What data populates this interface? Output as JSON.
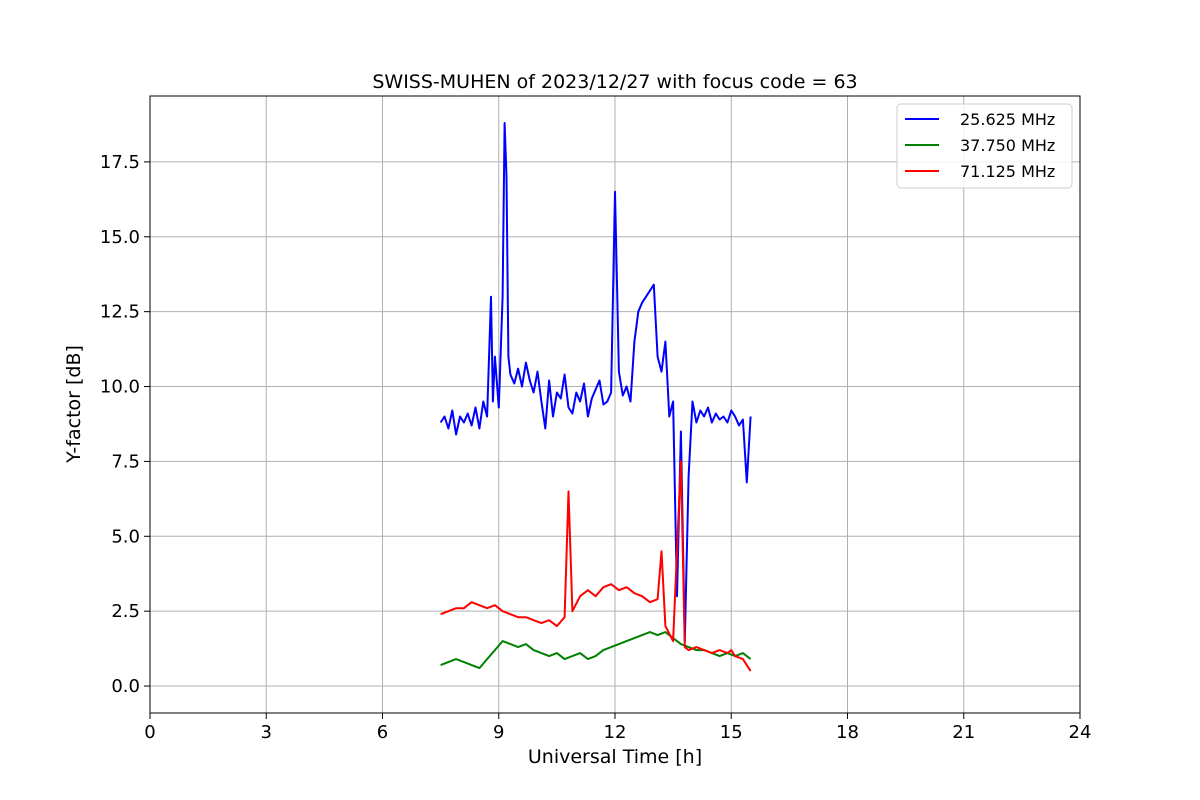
{
  "chart_data": {
    "type": "line",
    "title": "SWISS-MUHEN of 2023/12/27 with focus code = 63",
    "xlabel": "Universal Time [h]",
    "ylabel": "Y-factor [dB]",
    "xlim": [
      0,
      24
    ],
    "ylim": [
      -0.9,
      19.7
    ],
    "xticks": [
      0,
      3,
      6,
      9,
      12,
      15,
      18,
      21,
      24
    ],
    "xtick_labels": [
      "0",
      "3",
      "6",
      "9",
      "12",
      "15",
      "18",
      "21",
      "24"
    ],
    "yticks": [
      0,
      2.5,
      5,
      7.5,
      10,
      12.5,
      15,
      17.5
    ],
    "ytick_labels": [
      "0.0",
      "2.5",
      "5.0",
      "7.5",
      "10.0",
      "12.5",
      "15.0",
      "17.5"
    ],
    "grid": true,
    "legend_position": "top-right",
    "series": [
      {
        "name": "25.625 MHz",
        "color": "#0000ff",
        "x": [
          7.5,
          7.6,
          7.7,
          7.8,
          7.9,
          8.0,
          8.1,
          8.2,
          8.3,
          8.4,
          8.5,
          8.6,
          8.7,
          8.8,
          8.85,
          8.9,
          9.0,
          9.1,
          9.15,
          9.2,
          9.25,
          9.3,
          9.4,
          9.5,
          9.6,
          9.7,
          9.8,
          9.9,
          10.0,
          10.1,
          10.2,
          10.3,
          10.4,
          10.5,
          10.6,
          10.7,
          10.8,
          10.9,
          11.0,
          11.1,
          11.2,
          11.3,
          11.4,
          11.5,
          11.6,
          11.7,
          11.8,
          11.9,
          12.0,
          12.1,
          12.2,
          12.3,
          12.4,
          12.5,
          12.6,
          12.7,
          12.8,
          12.9,
          13.0,
          13.1,
          13.2,
          13.3,
          13.4,
          13.5,
          13.6,
          13.7,
          13.8,
          13.9,
          14.0,
          14.1,
          14.2,
          14.3,
          14.4,
          14.5,
          14.6,
          14.7,
          14.8,
          14.9,
          15.0,
          15.1,
          15.2,
          15.3,
          15.4,
          15.5
        ],
        "y": [
          8.8,
          9.0,
          8.6,
          9.2,
          8.4,
          9.0,
          8.8,
          9.1,
          8.7,
          9.3,
          8.6,
          9.5,
          9.0,
          13.0,
          9.5,
          11.0,
          9.3,
          13.0,
          18.8,
          17.0,
          11.0,
          10.4,
          10.1,
          10.6,
          10.0,
          10.8,
          10.2,
          9.8,
          10.5,
          9.5,
          8.6,
          10.2,
          9.0,
          9.8,
          9.6,
          10.4,
          9.3,
          9.1,
          9.8,
          9.5,
          10.1,
          9.0,
          9.6,
          9.9,
          10.2,
          9.4,
          9.5,
          9.8,
          16.5,
          10.5,
          9.7,
          10.0,
          9.5,
          11.5,
          12.5,
          12.8,
          13.0,
          13.2,
          13.4,
          11.0,
          10.5,
          11.5,
          9.0,
          9.5,
          3.0,
          8.5,
          1.5,
          7.0,
          9.5,
          8.8,
          9.2,
          9.0,
          9.3,
          8.8,
          9.1,
          8.9,
          9.0,
          8.8,
          9.2,
          9.0,
          8.7,
          8.9,
          6.8,
          9.0
        ]
      },
      {
        "name": "37.750 MHz",
        "color": "#008000",
        "x": [
          7.5,
          7.7,
          7.9,
          8.1,
          8.3,
          8.5,
          8.7,
          8.9,
          9.1,
          9.3,
          9.5,
          9.7,
          9.9,
          10.1,
          10.3,
          10.5,
          10.7,
          10.9,
          11.1,
          11.3,
          11.5,
          11.7,
          11.9,
          12.1,
          12.3,
          12.5,
          12.7,
          12.9,
          13.1,
          13.3,
          13.5,
          13.7,
          13.9,
          14.1,
          14.3,
          14.5,
          14.7,
          14.9,
          15.1,
          15.3,
          15.5
        ],
        "y": [
          0.7,
          0.8,
          0.9,
          0.8,
          0.7,
          0.6,
          0.9,
          1.2,
          1.5,
          1.4,
          1.3,
          1.4,
          1.2,
          1.1,
          1.0,
          1.1,
          0.9,
          1.0,
          1.1,
          0.9,
          1.0,
          1.2,
          1.3,
          1.4,
          1.5,
          1.6,
          1.7,
          1.8,
          1.7,
          1.8,
          1.6,
          1.4,
          1.3,
          1.2,
          1.2,
          1.1,
          1.0,
          1.1,
          1.0,
          1.1,
          0.9
        ]
      },
      {
        "name": "71.125 MHz",
        "color": "#ff0000",
        "x": [
          7.5,
          7.7,
          7.9,
          8.1,
          8.3,
          8.5,
          8.7,
          8.9,
          9.1,
          9.3,
          9.5,
          9.7,
          9.9,
          10.1,
          10.3,
          10.5,
          10.7,
          10.8,
          10.9,
          11.1,
          11.3,
          11.5,
          11.7,
          11.9,
          12.1,
          12.3,
          12.5,
          12.7,
          12.9,
          13.1,
          13.2,
          13.3,
          13.5,
          13.7,
          13.8,
          13.9,
          14.1,
          14.3,
          14.5,
          14.7,
          14.9,
          15.0,
          15.1,
          15.3,
          15.5
        ],
        "y": [
          2.4,
          2.5,
          2.6,
          2.6,
          2.8,
          2.7,
          2.6,
          2.7,
          2.5,
          2.4,
          2.3,
          2.3,
          2.2,
          2.1,
          2.2,
          2.0,
          2.3,
          6.5,
          2.5,
          3.0,
          3.2,
          3.0,
          3.3,
          3.4,
          3.2,
          3.3,
          3.1,
          3.0,
          2.8,
          2.9,
          4.5,
          2.0,
          1.5,
          7.5,
          1.3,
          1.2,
          1.3,
          1.2,
          1.1,
          1.2,
          1.1,
          1.2,
          1.0,
          0.9,
          0.5
        ]
      }
    ]
  }
}
